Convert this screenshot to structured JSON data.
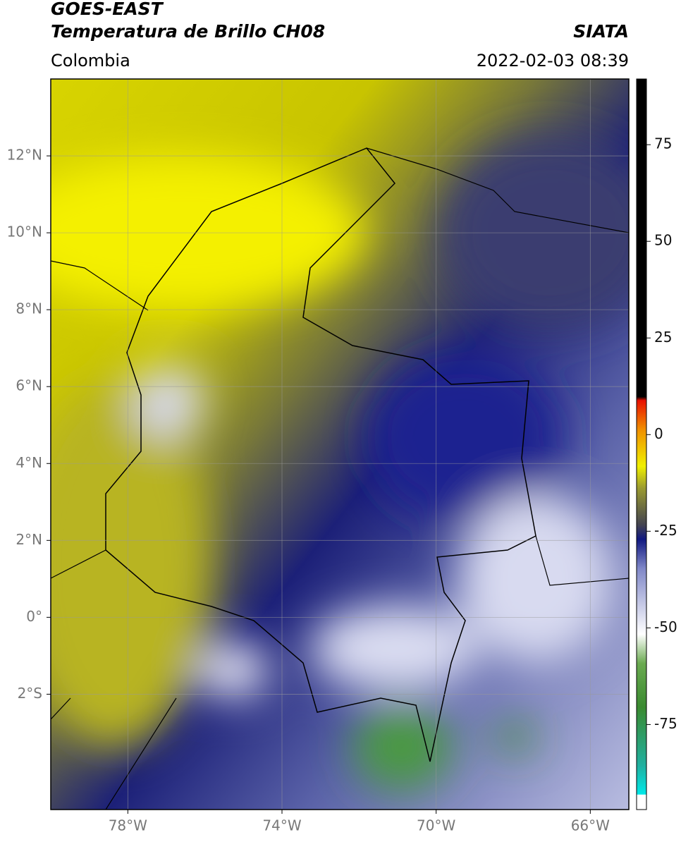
{
  "header": {
    "satellite": "GOES-EAST",
    "product": "Temperatura de Brillo CH08",
    "source": "SIATA",
    "region": "Colombia",
    "datetime": "2022-02-03 08:39"
  },
  "map": {
    "xlim": [
      -80,
      -65
    ],
    "ylim": [
      -5,
      14
    ],
    "xticks": [
      {
        "value": -78,
        "label": "78°W"
      },
      {
        "value": -74,
        "label": "74°W"
      },
      {
        "value": -70,
        "label": "70°W"
      },
      {
        "value": -66,
        "label": "66°W"
      }
    ],
    "yticks": [
      {
        "value": -2,
        "label": "2°S"
      },
      {
        "value": 0,
        "label": "0°"
      },
      {
        "value": 2,
        "label": "2°N"
      },
      {
        "value": 4,
        "label": "4°N"
      },
      {
        "value": 6,
        "label": "6°N"
      },
      {
        "value": 8,
        "label": "8°N"
      },
      {
        "value": 10,
        "label": "10°N"
      },
      {
        "value": 12,
        "label": "12°N"
      }
    ],
    "grid": true
  },
  "colorbar": {
    "lim": [
      -97,
      92
    ],
    "ticks": [
      -75,
      -50,
      -25,
      0,
      25,
      50,
      75
    ]
  }
}
